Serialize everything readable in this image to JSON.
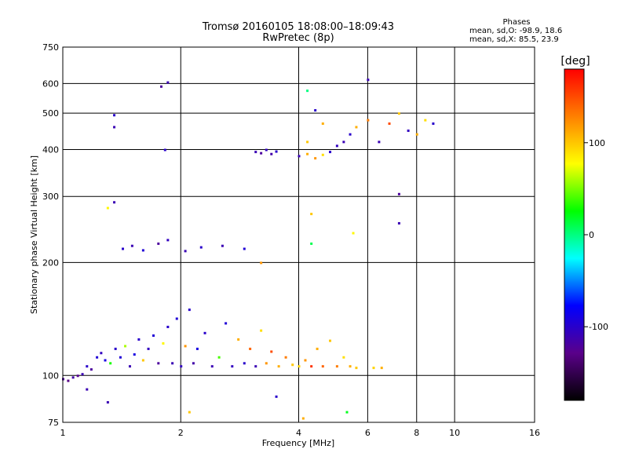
{
  "header": {
    "title_line1": "Tromsø 20160105 18:08:00–18:09:43",
    "title_line2": "RwPretec (8p)"
  },
  "stats": {
    "heading": "Phases",
    "line_o": "mean, sd,O: -98.9, 18.6",
    "line_x": "mean, sd,X: 85.5, 23.9"
  },
  "colorbar": {
    "unit": "[deg]",
    "ticks": [
      {
        "value": 100,
        "label": "100"
      },
      {
        "value": 0,
        "label": "0"
      },
      {
        "value": -100,
        "label": "-100"
      }
    ],
    "range": [
      -180,
      180
    ],
    "colors": [
      "#000000",
      "#5a008a",
      "#0000ff",
      "#00ffff",
      "#00ff00",
      "#ffff00",
      "#ff8000",
      "#ff0000"
    ]
  },
  "chart_data": {
    "type": "scatter",
    "title": "Tromsø 20160105 18:08:00–18:09:43",
    "subtitle": "RwPretec (8p)",
    "xlabel": "Frequency [MHz]",
    "ylabel": "Stationary phase Virtual Height [km]",
    "xscale": "log",
    "yscale": "log",
    "xlim": [
      1,
      16
    ],
    "ylim": [
      75,
      750
    ],
    "x_ticks": [
      {
        "value": 1,
        "label": "1"
      },
      {
        "value": 2,
        "label": "2"
      },
      {
        "value": 4,
        "label": "4"
      },
      {
        "value": 6,
        "label": "6"
      },
      {
        "value": 8,
        "label": "8"
      },
      {
        "value": 10,
        "label": "10"
      },
      {
        "value": 16,
        "label": "16"
      }
    ],
    "y_ticks": [
      {
        "value": 75,
        "label": "75"
      },
      {
        "value": 100,
        "label": "100"
      },
      {
        "value": 200,
        "label": "200"
      },
      {
        "value": 300,
        "label": "300"
      },
      {
        "value": 400,
        "label": "400"
      },
      {
        "value": 500,
        "label": "500"
      },
      {
        "value": 600,
        "label": "600"
      },
      {
        "value": 750,
        "label": "750"
      }
    ],
    "grid": true,
    "color_scale": "phase [deg]",
    "points": [
      [
        1.0,
        98,
        -120
      ],
      [
        1.03,
        97,
        -130
      ],
      [
        1.06,
        99,
        -115
      ],
      [
        1.09,
        100,
        -125
      ],
      [
        1.12,
        101,
        -110
      ],
      [
        1.15,
        106,
        -100
      ],
      [
        1.18,
        104,
        -120
      ],
      [
        1.22,
        112,
        -95
      ],
      [
        1.25,
        115,
        -105
      ],
      [
        1.28,
        110,
        -90
      ],
      [
        1.32,
        108,
        30
      ],
      [
        1.36,
        118,
        -100
      ],
      [
        1.4,
        112,
        -95
      ],
      [
        1.44,
        120,
        60
      ],
      [
        1.48,
        106,
        -110
      ],
      [
        1.52,
        114,
        -90
      ],
      [
        1.56,
        125,
        -100
      ],
      [
        1.6,
        110,
        100
      ],
      [
        1.65,
        118,
        -105
      ],
      [
        1.7,
        128,
        -95
      ],
      [
        1.75,
        108,
        -120
      ],
      [
        1.8,
        122,
        80
      ],
      [
        1.85,
        135,
        -100
      ],
      [
        1.9,
        108,
        -110
      ],
      [
        1.95,
        142,
        -95
      ],
      [
        2.0,
        106,
        -105
      ],
      [
        2.05,
        120,
        120
      ],
      [
        2.1,
        150,
        -100
      ],
      [
        2.15,
        108,
        -115
      ],
      [
        2.2,
        118,
        -90
      ],
      [
        2.3,
        130,
        -100
      ],
      [
        2.4,
        106,
        -110
      ],
      [
        2.5,
        112,
        40
      ],
      [
        2.6,
        138,
        -95
      ],
      [
        2.7,
        106,
        -105
      ],
      [
        2.8,
        125,
        110
      ],
      [
        2.9,
        108,
        -100
      ],
      [
        3.0,
        118,
        140
      ],
      [
        3.1,
        106,
        -110
      ],
      [
        3.2,
        132,
        90
      ],
      [
        3.3,
        108,
        120
      ],
      [
        3.4,
        116,
        150
      ],
      [
        3.55,
        106,
        110
      ],
      [
        3.7,
        112,
        130
      ],
      [
        3.85,
        107,
        100
      ],
      [
        4.0,
        106,
        95
      ],
      [
        4.15,
        110,
        120
      ],
      [
        4.3,
        106,
        160
      ],
      [
        4.45,
        118,
        110
      ],
      [
        4.6,
        106,
        140
      ],
      [
        4.8,
        124,
        100
      ],
      [
        5.0,
        106,
        130
      ],
      [
        5.2,
        112,
        90
      ],
      [
        5.4,
        106,
        110
      ],
      [
        5.6,
        105,
        100
      ],
      [
        6.2,
        105,
        95
      ],
      [
        6.5,
        105,
        110
      ],
      [
        1.35,
        290,
        -110
      ],
      [
        1.3,
        280,
        80
      ],
      [
        1.42,
        218,
        -100
      ],
      [
        1.5,
        222,
        -110
      ],
      [
        1.6,
        216,
        -95
      ],
      [
        1.75,
        225,
        -120
      ],
      [
        1.85,
        230,
        -105
      ],
      [
        2.05,
        215,
        -110
      ],
      [
        2.25,
        220,
        -100
      ],
      [
        2.55,
        222,
        -110
      ],
      [
        2.9,
        218,
        -95
      ],
      [
        3.2,
        200,
        120
      ],
      [
        3.1,
        395,
        -110
      ],
      [
        3.2,
        392,
        -120
      ],
      [
        3.3,
        400,
        -105
      ],
      [
        3.4,
        390,
        -115
      ],
      [
        3.5,
        396,
        -100
      ],
      [
        4.0,
        385,
        -110
      ],
      [
        4.2,
        390,
        110
      ],
      [
        4.4,
        380,
        120
      ],
      [
        4.6,
        388,
        90
      ],
      [
        4.8,
        395,
        -100
      ],
      [
        5.0,
        410,
        -105
      ],
      [
        5.2,
        420,
        -110
      ],
      [
        5.4,
        440,
        -100
      ],
      [
        5.6,
        460,
        110
      ],
      [
        6.0,
        480,
        130
      ],
      [
        6.4,
        420,
        -110
      ],
      [
        6.8,
        470,
        150
      ],
      [
        7.2,
        500,
        100
      ],
      [
        7.6,
        450,
        -105
      ],
      [
        8.0,
        440,
        110
      ],
      [
        8.4,
        480,
        90
      ],
      [
        8.8,
        470,
        -100
      ],
      [
        4.2,
        420,
        100
      ],
      [
        4.6,
        470,
        110
      ],
      [
        1.35,
        495,
        -100
      ],
      [
        1.35,
        460,
        -110
      ],
      [
        1.78,
        590,
        -120
      ],
      [
        1.85,
        605,
        -110
      ],
      [
        1.82,
        400,
        -100
      ],
      [
        6.0,
        615,
        -110
      ],
      [
        4.4,
        510,
        -100
      ],
      [
        7.2,
        305,
        -120
      ],
      [
        7.2,
        255,
        -110
      ],
      [
        4.3,
        225,
        10
      ],
      [
        4.3,
        270,
        100
      ],
      [
        5.5,
        240,
        80
      ],
      [
        4.2,
        575,
        0
      ],
      [
        1.3,
        85,
        -110
      ],
      [
        2.1,
        80,
        100
      ],
      [
        3.5,
        88,
        -100
      ],
      [
        4.1,
        77,
        110
      ],
      [
        5.3,
        80,
        20
      ],
      [
        1.15,
        92,
        -110
      ]
    ]
  }
}
